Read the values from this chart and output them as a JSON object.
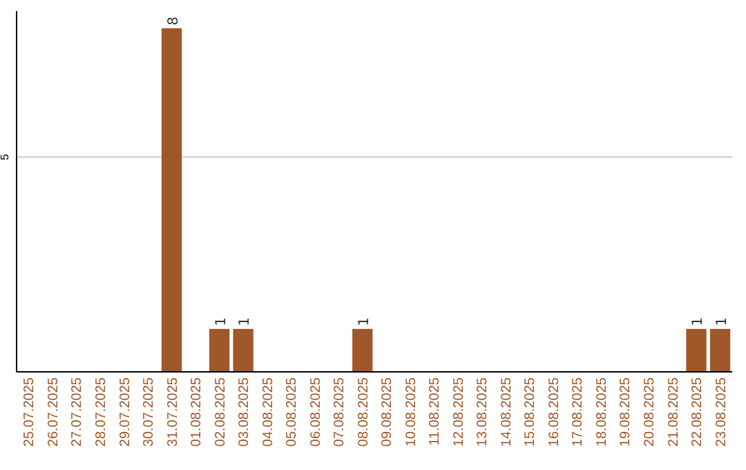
{
  "chart_data": {
    "type": "bar",
    "categories": [
      "25.07.2025",
      "26.07.2025",
      "27.07.2025",
      "28.07.2025",
      "29.07.2025",
      "30.07.2025",
      "31.07.2025",
      "01.08.2025",
      "02.08.2025",
      "03.08.2025",
      "04.08.2025",
      "05.08.2025",
      "06.08.2025",
      "07.08.2025",
      "08.08.2025",
      "09.08.2025",
      "10.08.2025",
      "11.08.2025",
      "12.08.2025",
      "13.08.2025",
      "14.08.2025",
      "15.08.2025",
      "16.08.2025",
      "17.08.2025",
      "18.08.2025",
      "19.08.2025",
      "20.08.2025",
      "21.08.2025",
      "22.08.2025",
      "23.08.2025"
    ],
    "values": [
      0,
      0,
      0,
      0,
      0,
      0,
      8,
      0,
      1,
      1,
      0,
      0,
      0,
      0,
      1,
      0,
      0,
      0,
      0,
      0,
      0,
      0,
      0,
      0,
      0,
      0,
      0,
      0,
      1,
      1
    ],
    "color": "#a0582a",
    "value_labels": [
      null,
      null,
      null,
      null,
      null,
      null,
      "8",
      null,
      "1",
      "1",
      null,
      null,
      null,
      null,
      "1",
      null,
      null,
      null,
      null,
      null,
      null,
      null,
      null,
      null,
      null,
      null,
      null,
      null,
      "1",
      "1"
    ],
    "ylim": [
      0,
      8.4
    ],
    "yticks": [
      5
    ],
    "grid": "y"
  }
}
